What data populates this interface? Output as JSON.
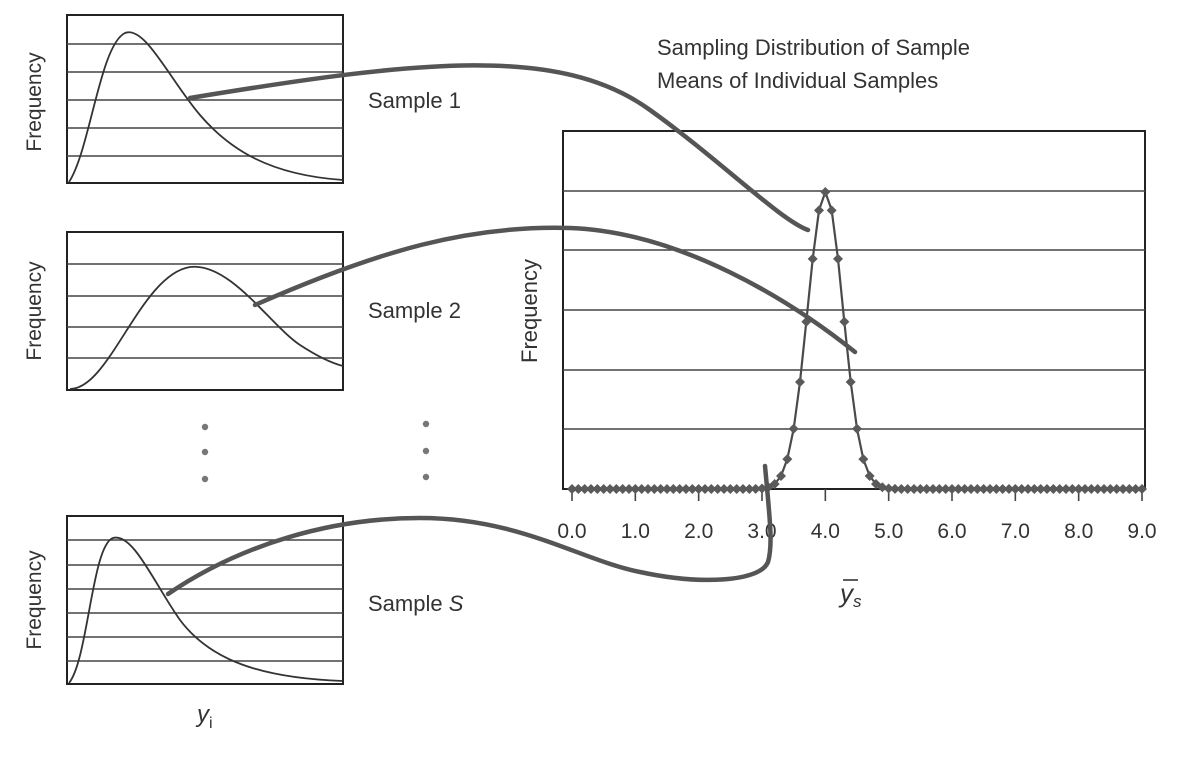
{
  "title_line1": "Sampling Distribution of Sample",
  "title_line2": "Means of Individual Samples",
  "samples": [
    {
      "label": "Sample 1",
      "ylabel": "Frequency"
    },
    {
      "label": "Sample 2",
      "ylabel": "Frequency"
    },
    {
      "label_prefix": "Sample ",
      "label_var": "S",
      "ylabel": "Frequency"
    }
  ],
  "small_xlabel": "y",
  "small_xlabel_sub": "i",
  "main": {
    "ylabel": "Frequency",
    "xlabel": "y",
    "xlabel_sub": "s"
  },
  "chart_data": {
    "type": "line",
    "title": "Sampling Distribution of Sample Means of Individual Samples",
    "xlabel": "y̅s",
    "ylabel": "Frequency",
    "xlim": [
      0.0,
      9.0
    ],
    "x_ticks": [
      "0.0",
      "1.0",
      "2.0",
      "3.0",
      "4.0",
      "5.0",
      "6.0",
      "7.0",
      "8.0",
      "9.0"
    ],
    "distribution": "approximately normal",
    "peak_x": 4.0,
    "spread_sd": 0.28,
    "point_step": 0.1,
    "grid": true
  },
  "colors": {
    "lines": "#333333",
    "markers": "#5a5a5a",
    "connectors": "#555555"
  }
}
